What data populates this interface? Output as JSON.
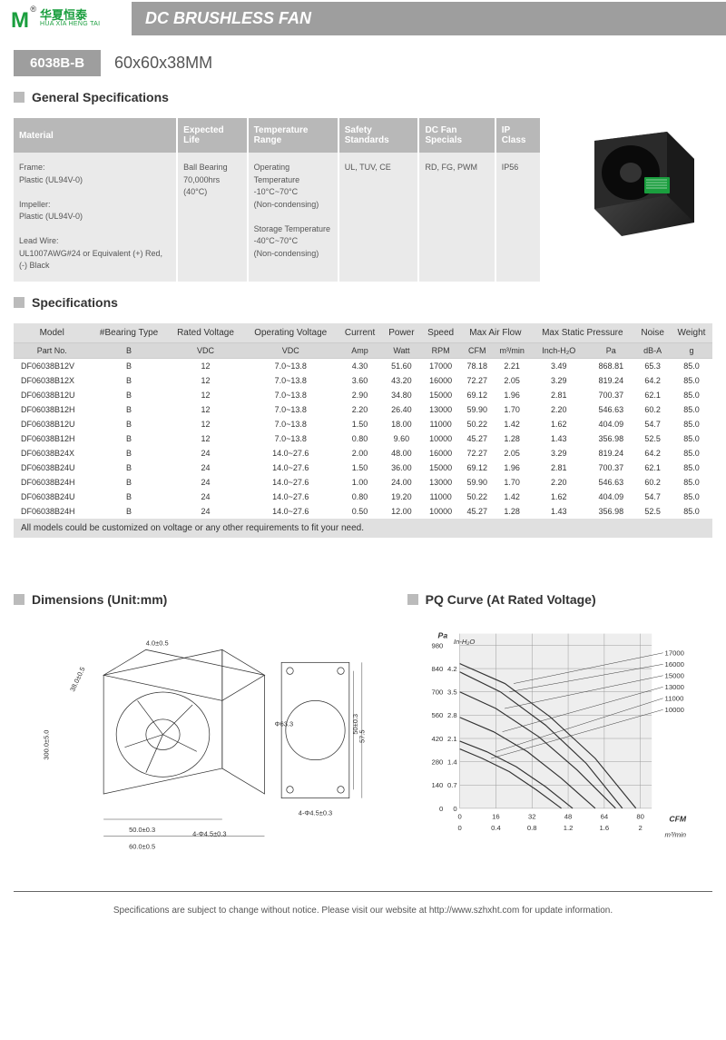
{
  "logo": {
    "mark": "M",
    "reg": "®",
    "cn": "华夏恒泰",
    "en": "HUA XIA HENG TAI"
  },
  "title": "DC BRUSHLESS FAN",
  "model": {
    "badge": "6038B-B",
    "size": "60x60x38MM"
  },
  "sections": {
    "general": "General Specifications",
    "specs": "Specifications",
    "dimensions": "Dimensions (Unit:mm)",
    "pq": "PQ Curve (At Rated Voltage)"
  },
  "genSpec": {
    "headers": [
      "Material",
      "Expected Life",
      "Temperature Range",
      "Safety Standards",
      "DC Fan Specials",
      "IP Class"
    ],
    "cells": [
      "Frame:\nPlastic (UL94V-0)\n\nImpeller:\nPlastic (UL94V-0)\n\nLead Wire:\nUL1007AWG#24 or Equivalent (+) Red, (-) Black",
      "Ball Bearing\n70,000hrs (40°C)",
      "Operating Temperature\n-10°C~70°C\n(Non-condensing)\n\nStorage Temperature\n-40°C~70°C\n(Non-condensing)",
      "UL, TUV, CE",
      "RD, FG, PWM",
      "IP56"
    ]
  },
  "specTable": {
    "headers1": [
      "Model",
      "#Bearing Type",
      "Rated Voltage",
      "Operating Voltage",
      "Current",
      "Power",
      "Speed",
      "Max Air Flow",
      "",
      "Max Static Pressure",
      "",
      "Noise",
      "Weight"
    ],
    "headers2": [
      "Part No.",
      "B",
      "VDC",
      "VDC",
      "Amp",
      "Watt",
      "RPM",
      "CFM",
      "m³/min",
      "Inch-H₂O",
      "Pa",
      "dB-A",
      "g"
    ],
    "rows": [
      [
        "DF06038B12V",
        "B",
        "12",
        "7.0~13.8",
        "4.30",
        "51.60",
        "17000",
        "78.18",
        "2.21",
        "3.49",
        "868.81",
        "65.3",
        "85.0"
      ],
      [
        "DF06038B12X",
        "B",
        "12",
        "7.0~13.8",
        "3.60",
        "43.20",
        "16000",
        "72.27",
        "2.05",
        "3.29",
        "819.24",
        "64.2",
        "85.0"
      ],
      [
        "DF06038B12U",
        "B",
        "12",
        "7.0~13.8",
        "2.90",
        "34.80",
        "15000",
        "69.12",
        "1.96",
        "2.81",
        "700.37",
        "62.1",
        "85.0"
      ],
      [
        "DF06038B12H",
        "B",
        "12",
        "7.0~13.8",
        "2.20",
        "26.40",
        "13000",
        "59.90",
        "1.70",
        "2.20",
        "546.63",
        "60.2",
        "85.0"
      ],
      [
        "DF06038B12U",
        "B",
        "12",
        "7.0~13.8",
        "1.50",
        "18.00",
        "11000",
        "50.22",
        "1.42",
        "1.62",
        "404.09",
        "54.7",
        "85.0"
      ],
      [
        "DF06038B12H",
        "B",
        "12",
        "7.0~13.8",
        "0.80",
        "9.60",
        "10000",
        "45.27",
        "1.28",
        "1.43",
        "356.98",
        "52.5",
        "85.0"
      ],
      [
        "DF06038B24X",
        "B",
        "24",
        "14.0~27.6",
        "2.00",
        "48.00",
        "16000",
        "72.27",
        "2.05",
        "3.29",
        "819.24",
        "64.2",
        "85.0"
      ],
      [
        "DF06038B24U",
        "B",
        "24",
        "14.0~27.6",
        "1.50",
        "36.00",
        "15000",
        "69.12",
        "1.96",
        "2.81",
        "700.37",
        "62.1",
        "85.0"
      ],
      [
        "DF06038B24H",
        "B",
        "24",
        "14.0~27.6",
        "1.00",
        "24.00",
        "13000",
        "59.90",
        "1.70",
        "2.20",
        "546.63",
        "60.2",
        "85.0"
      ],
      [
        "DF06038B24U",
        "B",
        "24",
        "14.0~27.6",
        "0.80",
        "19.20",
        "11000",
        "50.22",
        "1.42",
        "1.62",
        "404.09",
        "54.7",
        "85.0"
      ],
      [
        "DF06038B24H",
        "B",
        "24",
        "14.0~27.6",
        "0.50",
        "12.00",
        "10000",
        "45.27",
        "1.28",
        "1.43",
        "356.98",
        "52.5",
        "85.0"
      ]
    ],
    "note": "All models could be customized on voltage or any other requirements to fit your need."
  },
  "dimensions": {
    "labels": [
      "38.0±0.5",
      "4.0±0.5",
      "300.0±5.0",
      "50.0±0.3",
      "60.0±0.5",
      "4-Φ4.5±0.3",
      "Φ63.3",
      "50±0.3",
      "57.5",
      "4-Φ4.5±0.3"
    ]
  },
  "pqChart": {
    "type": "line",
    "yLabel": "Pa",
    "y2Label": "In-H₂O",
    "xLabel": "CFM",
    "x2Label": "m³/min",
    "yTicks": [
      0,
      140,
      280,
      420,
      560,
      700,
      840,
      980
    ],
    "y2Ticks": [
      0,
      0.7,
      1.4,
      2.1,
      2.8,
      3.5,
      4.2
    ],
    "xTicks": [
      0,
      16,
      32,
      48,
      64,
      80
    ],
    "x2Ticks": [
      0,
      0.4,
      0.8,
      1.2,
      1.6,
      2.0
    ],
    "ylim": [
      0,
      1050
    ],
    "xlim": [
      0,
      85
    ],
    "series": [
      {
        "label": "17000",
        "color": "#333",
        "points": [
          [
            0,
            870
          ],
          [
            20,
            750
          ],
          [
            40,
            550
          ],
          [
            60,
            300
          ],
          [
            78,
            0
          ]
        ]
      },
      {
        "label": "16000",
        "color": "#333",
        "points": [
          [
            0,
            820
          ],
          [
            18,
            700
          ],
          [
            38,
            500
          ],
          [
            56,
            270
          ],
          [
            72,
            0
          ]
        ]
      },
      {
        "label": "15000",
        "color": "#333",
        "points": [
          [
            0,
            700
          ],
          [
            16,
            600
          ],
          [
            35,
            430
          ],
          [
            52,
            230
          ],
          [
            69,
            0
          ]
        ]
      },
      {
        "label": "13000",
        "color": "#333",
        "points": [
          [
            0,
            547
          ],
          [
            15,
            460
          ],
          [
            30,
            340
          ],
          [
            45,
            180
          ],
          [
            60,
            0
          ]
        ]
      },
      {
        "label": "11000",
        "color": "#333",
        "points": [
          [
            0,
            404
          ],
          [
            12,
            340
          ],
          [
            25,
            250
          ],
          [
            38,
            130
          ],
          [
            50,
            0
          ]
        ]
      },
      {
        "label": "10000",
        "color": "#333",
        "points": [
          [
            0,
            357
          ],
          [
            10,
            300
          ],
          [
            22,
            220
          ],
          [
            34,
            110
          ],
          [
            45,
            0
          ]
        ]
      }
    ],
    "bgColor": "#eeeeee",
    "gridColor": "#999999",
    "fontSize": 8
  },
  "footer": "Specifications are subject to change without notice. Please visit our website at http://www.szhxht.com for update information."
}
